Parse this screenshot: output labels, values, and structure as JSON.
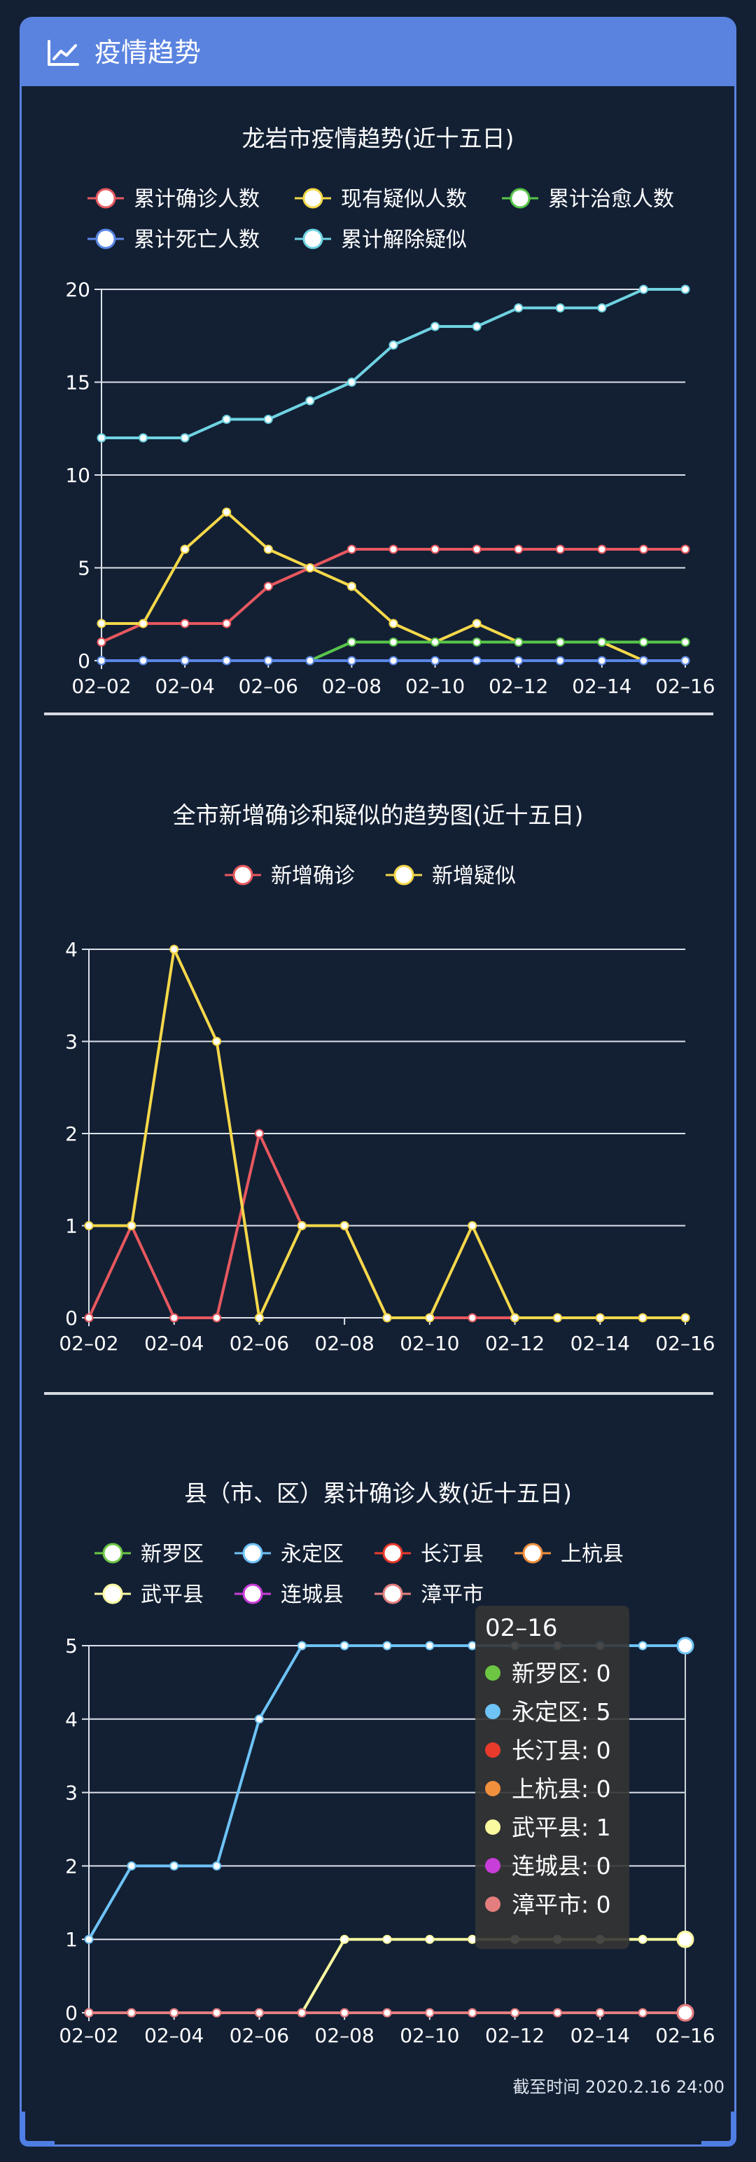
{
  "header": {
    "title": "疫情趋势",
    "icon": "line-chart-icon"
  },
  "timestamp": "截至时间 2020.2.16 24:00",
  "colors": {
    "accent": "#5a83e0",
    "background": "#132034",
    "red": "#e8585f",
    "yellow": "#f5d84a",
    "green": "#58c64a",
    "blue": "#5a86e6",
    "cyan": "#6fd3e2",
    "lightblue": "#6ec3f7",
    "orange": "#f0903c",
    "lightyellow": "#fafaa0",
    "purple": "#c83ed8",
    "pink": "#e88686"
  },
  "tooltip": {
    "title": "02–16",
    "rows": [
      {
        "label": "新罗区: 0",
        "color": "#6cc644"
      },
      {
        "label": "永定区: 5",
        "color": "#6ec3f7"
      },
      {
        "label": "长汀县: 0",
        "color": "#e83b2c"
      },
      {
        "label": "上杭县: 0",
        "color": "#f0903c"
      },
      {
        "label": "武平县: 1",
        "color": "#fafaa0"
      },
      {
        "label": "连城县: 0",
        "color": "#c83ed8"
      },
      {
        "label": "漳平市: 0",
        "color": "#e47e7e"
      }
    ]
  },
  "chart_data": [
    {
      "type": "line",
      "title": "龙岩市疫情趋势(近十五日)",
      "x": [
        "02–02",
        "02–03",
        "02–04",
        "02–05",
        "02–06",
        "02–07",
        "02–08",
        "02–09",
        "02–10",
        "02–11",
        "02–12",
        "02–13",
        "02–14",
        "02–15",
        "02–16"
      ],
      "x_tick_labels": [
        "02–02",
        "02–04",
        "02–06",
        "02–08",
        "02–10",
        "02–12",
        "02–14",
        "02–16"
      ],
      "y_ticks": [
        "0",
        "5",
        "10",
        "15",
        "20"
      ],
      "ylim": [
        0,
        20
      ],
      "grid": true,
      "legend_position": "top",
      "legend_rows": [
        [
          0,
          1,
          2
        ],
        [
          3,
          4
        ]
      ],
      "series": [
        {
          "name": "累计确诊人数",
          "color": "#e8585f",
          "values": [
            1,
            2,
            2,
            2,
            4,
            5,
            6,
            6,
            6,
            6,
            6,
            6,
            6,
            6,
            6
          ]
        },
        {
          "name": "现有疑似人数",
          "color": "#f5d84a",
          "values": [
            2,
            2,
            6,
            8,
            6,
            5,
            4,
            2,
            1,
            2,
            1,
            1,
            1,
            0,
            0
          ]
        },
        {
          "name": "累计治愈人数",
          "color": "#58c64a",
          "values": [
            0,
            0,
            0,
            0,
            0,
            0,
            1,
            1,
            1,
            1,
            1,
            1,
            1,
            1,
            1
          ]
        },
        {
          "name": "累计死亡人数",
          "color": "#5a86e6",
          "values": [
            0,
            0,
            0,
            0,
            0,
            0,
            0,
            0,
            0,
            0,
            0,
            0,
            0,
            0,
            0
          ]
        },
        {
          "name": "累计解除疑似",
          "color": "#6fd3e2",
          "values": [
            12,
            12,
            12,
            13,
            13,
            14,
            15,
            17,
            18,
            18,
            19,
            19,
            19,
            20,
            20
          ]
        }
      ]
    },
    {
      "type": "line",
      "title": "全市新增确诊和疑似的趋势图(近十五日)",
      "x": [
        "02–02",
        "02–03",
        "02–04",
        "02–05",
        "02–06",
        "02–07",
        "02–08",
        "02–09",
        "02–10",
        "02–11",
        "02–12",
        "02–13",
        "02–14",
        "02–15",
        "02–16"
      ],
      "x_tick_labels": [
        "02–02",
        "02–04",
        "02–06",
        "02–08",
        "02–10",
        "02–12",
        "02–14",
        "02–16"
      ],
      "y_ticks": [
        "0",
        "1",
        "2",
        "3",
        "4"
      ],
      "ylim": [
        0,
        4
      ],
      "grid": true,
      "legend_position": "top",
      "legend_rows": [
        [
          0,
          1
        ]
      ],
      "series": [
        {
          "name": "新增确诊",
          "color": "#e8585f",
          "values": [
            0,
            1,
            0,
            0,
            2,
            1,
            1,
            0,
            0,
            0,
            0,
            0,
            0,
            0,
            0
          ]
        },
        {
          "name": "新增疑似",
          "color": "#f5d84a",
          "values": [
            1,
            1,
            4,
            3,
            0,
            1,
            1,
            0,
            0,
            1,
            0,
            0,
            0,
            0,
            0
          ]
        }
      ]
    },
    {
      "type": "line",
      "title": "县（市、区）累计确诊人数(近十五日)",
      "x": [
        "02–02",
        "02–03",
        "02–04",
        "02–05",
        "02–06",
        "02–07",
        "02–08",
        "02–09",
        "02–10",
        "02–11",
        "02–12",
        "02–13",
        "02–14",
        "02–15",
        "02–16"
      ],
      "x_tick_labels": [
        "02–02",
        "02–04",
        "02–06",
        "02–08",
        "02–10",
        "02–12",
        "02–14",
        "02–16"
      ],
      "y_ticks": [
        "0",
        "1",
        "2",
        "3",
        "4",
        "5"
      ],
      "ylim": [
        0,
        5
      ],
      "grid": true,
      "legend_position": "top",
      "legend_rows": [
        [
          0,
          1,
          2,
          3
        ],
        [
          4,
          5,
          6
        ]
      ],
      "hover_index": 14,
      "series": [
        {
          "name": "新罗区",
          "color": "#6cc644",
          "values": [
            0,
            0,
            0,
            0,
            0,
            0,
            0,
            0,
            0,
            0,
            0,
            0,
            0,
            0,
            0
          ]
        },
        {
          "name": "永定区",
          "color": "#6ec3f7",
          "values": [
            1,
            2,
            2,
            2,
            4,
            5,
            5,
            5,
            5,
            5,
            5,
            5,
            5,
            5,
            5
          ]
        },
        {
          "name": "长汀县",
          "color": "#e83b2c",
          "values": [
            0,
            0,
            0,
            0,
            0,
            0,
            0,
            0,
            0,
            0,
            0,
            0,
            0,
            0,
            0
          ]
        },
        {
          "name": "上杭县",
          "color": "#f0903c",
          "values": [
            0,
            0,
            0,
            0,
            0,
            0,
            0,
            0,
            0,
            0,
            0,
            0,
            0,
            0,
            0
          ]
        },
        {
          "name": "武平县",
          "color": "#fafaa0",
          "values": [
            0,
            0,
            0,
            0,
            0,
            0,
            1,
            1,
            1,
            1,
            1,
            1,
            1,
            1,
            1
          ]
        },
        {
          "name": "连城县",
          "color": "#c83ed8",
          "values": [
            0,
            0,
            0,
            0,
            0,
            0,
            0,
            0,
            0,
            0,
            0,
            0,
            0,
            0,
            0
          ]
        },
        {
          "name": "漳平市",
          "color": "#e47e7e",
          "values": [
            0,
            0,
            0,
            0,
            0,
            0,
            0,
            0,
            0,
            0,
            0,
            0,
            0,
            0,
            0
          ]
        }
      ]
    }
  ]
}
